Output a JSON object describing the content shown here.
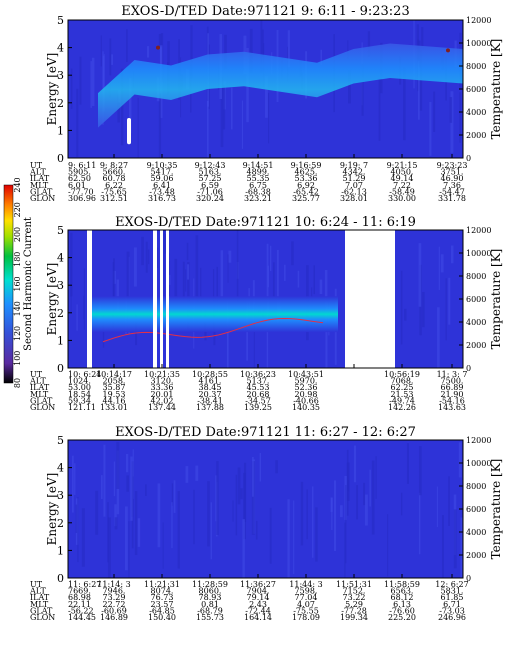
{
  "chart_data": [
    {
      "type": "heatmap",
      "title": "EXOS-D/TED   Date:971121  9: 6:11 - 9:23:23",
      "ylabel": "Energy [eV]",
      "y2label": "Temperature [K]",
      "ylim": [
        0,
        5
      ],
      "y2lim": [
        0,
        12000
      ],
      "yticks": [
        "0",
        "1",
        "2",
        "3",
        "4",
        "5"
      ],
      "y2ticks": [
        "0",
        "2000",
        "4000",
        "6000",
        "8000",
        "10000",
        "12000"
      ],
      "background": "#2e33d8",
      "band": {
        "x": [
          0.0,
          1.0
        ],
        "y": [
          2.0,
          3.2,
          3.0,
          3.4,
          3.5,
          3.3,
          3.1,
          3.6,
          3.8,
          3.7,
          3.6
        ]
      },
      "table": {
        "labels": [
          "UT",
          "ALT",
          "ILAT",
          "MLT",
          "GLAT",
          "GLON"
        ],
        "columns": [
          [
            "9: 6:11",
            "5905.",
            "62.50",
            "6.01",
            "-77.70",
            "306.96"
          ],
          [
            "9: 8:27",
            "5660.",
            "60.78",
            "6.22",
            "-75.65",
            "312.51"
          ],
          [
            "9:10:35",
            "5417.",
            "59.06",
            "6.41",
            "-73.48",
            "316.73"
          ],
          [
            "9:12:43",
            "5163.",
            "57.25",
            "6.59",
            "-71.06",
            "320.24"
          ],
          [
            "9:14:51",
            "4899.",
            "55.35",
            "6.75",
            "-68.38",
            "323.21"
          ],
          [
            "9:16:59",
            "4625.",
            "53.36",
            "6.92",
            "-65.42",
            "325.77"
          ],
          [
            "9:19: 7",
            "4342.",
            "51.29",
            "7.07",
            "-62.13",
            "328.01"
          ],
          [
            "9:21:15",
            "4050.",
            "49.14",
            "7.22",
            "-58.49",
            "330.00"
          ],
          [
            "9:23:23",
            "3751.",
            "46.90",
            "7.36",
            "-54.47",
            "331.78"
          ]
        ]
      }
    },
    {
      "type": "heatmap",
      "title": "EXOS-D/TED   Date:971121  10: 6:24 - 11: 6:19",
      "ylabel": "Energy [eV]",
      "y2label": "Temperature [K]",
      "ylim": [
        0,
        5
      ],
      "y2lim": [
        0,
        12000
      ],
      "yticks": [
        "0",
        "1",
        "2",
        "3",
        "4",
        "5"
      ],
      "y2ticks": [
        "0",
        "2000",
        "4000",
        "6000",
        "8000",
        "10000",
        "12000"
      ],
      "background": "#2e33d8",
      "colorbar": {
        "label": "Second Harmonic Current",
        "ticks": [
          "80",
          "100",
          "120",
          "140",
          "160",
          "180",
          "200",
          "220",
          "240"
        ],
        "colors": [
          "#000000",
          "#5a2aa0",
          "#3550d8",
          "#1e90ff",
          "#00e0d0",
          "#00c040",
          "#a0e000",
          "#ffe000",
          "#ff8000",
          "#e00000"
        ]
      },
      "table": {
        "labels": [
          "UT",
          "ALT",
          "ILAT",
          "MLT",
          "GLAT",
          "GLON"
        ],
        "columns": [
          [
            "10: 6:24",
            "1024.",
            "53.00",
            "18.54",
            "59.34",
            "121.11"
          ],
          [
            "10:14:17",
            "2058.",
            "35.87",
            "19.53",
            "44.16",
            "133.01"
          ],
          [
            "10:21:35",
            "3120.",
            "33.36",
            "20.01",
            "42.02",
            "137.44"
          ],
          [
            "10:28:55",
            "4161.",
            "38.45",
            "20.37",
            "-38.41",
            "137.88"
          ],
          [
            "10:36:23",
            "5137.",
            "45.53",
            "20.68",
            "-34.57",
            "139.25"
          ],
          [
            "10:43:51",
            "5970.",
            "52.36",
            "20.98",
            "-40.66",
            "140.35"
          ],
          [
            "",
            "",
            "",
            "",
            "",
            ""
          ],
          [
            "10:56:19",
            "7068.",
            "62.25",
            "21.53",
            "-49.74",
            "142.26"
          ],
          [
            "11: 3: 7",
            "7500.",
            "66.89",
            "21.90",
            "-54.16",
            "143.63"
          ]
        ]
      }
    },
    {
      "type": "heatmap",
      "title": "EXOS-D/TED   Date:971121  11: 6:27 - 12: 6:27",
      "ylabel": "Energy [eV]",
      "y2label": "Temperature [K]",
      "ylim": [
        0,
        5
      ],
      "y2lim": [
        0,
        12000
      ],
      "yticks": [
        "0",
        "1",
        "2",
        "3",
        "4",
        "5"
      ],
      "y2ticks": [
        "0",
        "2000",
        "4000",
        "6000",
        "8000",
        "10000",
        "12000"
      ],
      "background": "#2e33d8",
      "table": {
        "labels": [
          "UT",
          "ALT",
          "ILAT",
          "MLT",
          "GLAT",
          "GLON"
        ],
        "columns": [
          [
            "11: 6:27",
            "7669.",
            "68.98",
            "22.11",
            "-56.22",
            "144.45"
          ],
          [
            "11:14: 3",
            "7946.",
            "73.29",
            "22.72",
            "-60.69",
            "146.89"
          ],
          [
            "11:21:31",
            "8074.",
            "76.73",
            "23.57",
            "-64.85",
            "150.40"
          ],
          [
            "11:28:59",
            "8060.",
            "78.93",
            "0.81",
            "-68.79",
            "155.73"
          ],
          [
            "11:36:27",
            "7904.",
            "79.14",
            "2.43",
            "-72.44",
            "164.14"
          ],
          [
            "11:44: 3",
            "7598.",
            "77.04",
            "4.07",
            "-75.55",
            "178.09"
          ],
          [
            "11:51:31",
            "7152.",
            "73.22",
            "5.29",
            "-77.28",
            "199.34"
          ],
          [
            "11:58:59",
            "6563.",
            "68.12",
            "6.13",
            "-76.60",
            "225.20"
          ],
          [
            "12: 6:27",
            "5831.",
            "61.85",
            "6.71",
            "-73.03",
            "246.96"
          ]
        ]
      }
    }
  ]
}
